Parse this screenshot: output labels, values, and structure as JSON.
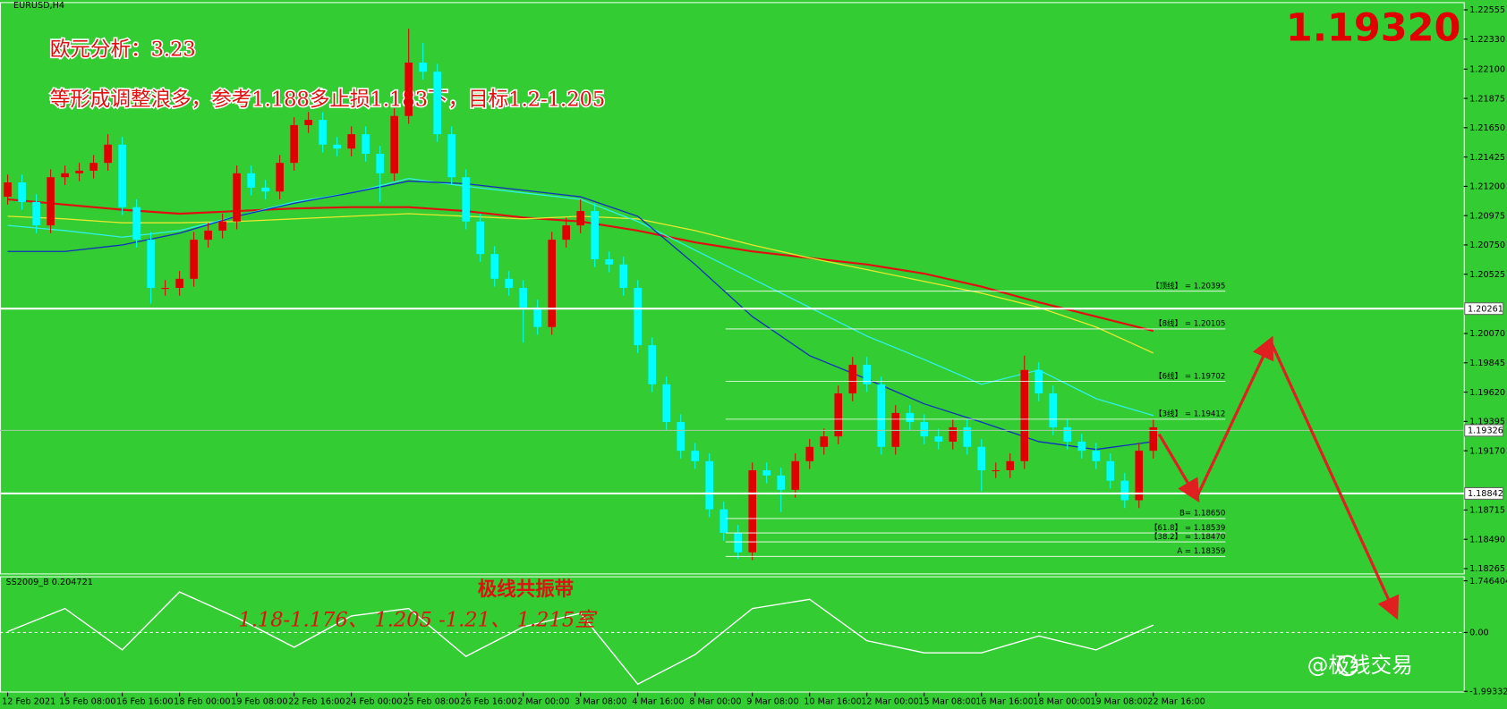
{
  "symbol": "EURUSD,H4",
  "price_display": "1.19320",
  "annotations": [
    "欧元分析：3.23",
    "等形成调整浪多，参考1.188多止损1.183下，目标1.2-1.205"
  ],
  "watermark": "@极线交易",
  "chart_data": [
    {
      "type": "candlestick",
      "categories": [
        "12 Feb 2021",
        null,
        null,
        null,
        "15 Feb 08:00",
        null,
        null,
        null,
        "16 Feb 16:00",
        null,
        null,
        null,
        "18 Feb 00:00",
        null,
        null,
        null,
        "19 Feb 08:00",
        null,
        null,
        null,
        "22 Feb 16:00",
        null,
        null,
        null,
        "24 Feb 00:00",
        null,
        null,
        null,
        "25 Feb 08:00",
        null,
        null,
        null,
        "26 Feb 16:00",
        null,
        null,
        null,
        "2 Mar 00:00",
        null,
        null,
        null,
        "3 Mar 08:00",
        null,
        null,
        null,
        "4 Mar 16:00",
        null,
        null,
        null,
        "8 Mar 00:00",
        null,
        null,
        null,
        "9 Mar 08:00",
        null,
        null,
        null,
        "10 Mar 16:00",
        null,
        null,
        null,
        "12 Mar 00:00",
        null,
        null,
        null,
        "15 Mar 08:00",
        null,
        null,
        null,
        "16 Mar 16:00",
        null,
        null,
        null,
        "18 Mar 00:00",
        null,
        null,
        null,
        "19 Mar 08:00",
        null,
        null,
        null,
        "22 Mar 16:00"
      ],
      "open": [
        1.2112,
        1.2123,
        1.2108,
        1.209,
        1.2127,
        1.213,
        1.2132,
        1.2138,
        1.2152,
        1.2104,
        1.2079,
        1.2042,
        1.2042,
        1.2049,
        1.2079,
        1.2086,
        1.2093,
        1.213,
        1.2119,
        1.2116,
        1.2138,
        1.2167,
        1.2171,
        1.2152,
        1.2149,
        1.216,
        1.2145,
        1.213,
        1.2174,
        1.2215,
        1.2208,
        1.216,
        1.2127,
        1.2093,
        1.2068,
        1.2049,
        1.2042,
        1.2027,
        1.2012,
        1.2079,
        1.209,
        1.2101,
        1.2064,
        1.206,
        1.2042,
        1.1998,
        1.1968,
        1.1939,
        1.1917,
        1.1909,
        1.1872,
        1.1854,
        1.1839,
        1.1902,
        1.1898,
        1.1887,
        1.1909,
        1.192,
        1.1928,
        1.1961,
        1.1983,
        1.1968,
        1.192,
        1.1946,
        1.1939,
        1.1928,
        1.1924,
        1.1935,
        1.192,
        1.1902,
        1.1902,
        1.1909,
        1.1979,
        1.1961,
        1.1935,
        1.1924,
        1.1917,
        1.1909,
        1.1894,
        1.1879,
        1.1917
      ],
      "high": [
        1.2129,
        1.2129,
        1.2114,
        1.2133,
        1.2136,
        1.2138,
        1.2144,
        1.216,
        1.2158,
        1.211,
        1.2085,
        1.2048,
        1.2055,
        1.2085,
        1.2092,
        1.2099,
        1.2136,
        1.2136,
        1.2125,
        1.2144,
        1.2173,
        1.2177,
        1.2177,
        1.2158,
        1.2166,
        1.2166,
        1.2151,
        1.218,
        1.2241,
        1.223,
        1.2214,
        1.2166,
        1.2133,
        1.2099,
        1.2074,
        1.2055,
        1.2048,
        1.2033,
        1.2085,
        1.2096,
        1.211,
        1.2107,
        1.207,
        1.2066,
        1.2048,
        1.2004,
        1.1974,
        1.1945,
        1.1923,
        1.1915,
        1.1878,
        1.186,
        1.1908,
        1.1908,
        1.1904,
        1.1915,
        1.1926,
        1.1934,
        1.1967,
        1.1989,
        1.1989,
        1.1974,
        1.1952,
        1.1952,
        1.1945,
        1.1934,
        1.1941,
        1.1941,
        1.1926,
        1.1908,
        1.1915,
        1.199,
        1.1985,
        1.1967,
        1.1941,
        1.193,
        1.1923,
        1.1915,
        1.19,
        1.1923,
        1.1941
      ],
      "low": [
        1.2106,
        1.2102,
        1.2084,
        1.2084,
        1.2121,
        1.2124,
        1.2126,
        1.2132,
        1.2098,
        1.2073,
        1.203,
        1.2036,
        1.2036,
        1.2043,
        1.2073,
        1.208,
        1.2087,
        1.2113,
        1.211,
        1.211,
        1.2132,
        1.2161,
        1.2146,
        1.2143,
        1.2143,
        1.2139,
        1.2108,
        1.2124,
        1.2168,
        1.2202,
        1.2154,
        1.2121,
        1.2087,
        1.2062,
        1.2043,
        1.2036,
        1.2,
        1.2006,
        1.2006,
        1.2073,
        1.2084,
        1.2058,
        1.2054,
        1.2036,
        1.1992,
        1.1962,
        1.1933,
        1.1911,
        1.1903,
        1.1866,
        1.1848,
        1.1834,
        1.1833,
        1.1892,
        1.187,
        1.1881,
        1.1903,
        1.1914,
        1.1922,
        1.1955,
        1.1962,
        1.1914,
        1.1914,
        1.1933,
        1.1922,
        1.1918,
        1.1918,
        1.1914,
        1.1886,
        1.1896,
        1.1896,
        1.1903,
        1.1955,
        1.1929,
        1.1918,
        1.1911,
        1.1903,
        1.1888,
        1.1873,
        1.1873,
        1.1911
      ],
      "close": [
        1.2123,
        1.2108,
        1.209,
        1.2127,
        1.213,
        1.2132,
        1.2138,
        1.2152,
        1.2104,
        1.2079,
        1.2042,
        1.2042,
        1.2049,
        1.2079,
        1.2086,
        1.2093,
        1.213,
        1.2119,
        1.2116,
        1.2138,
        1.2167,
        1.2171,
        1.2152,
        1.2149,
        1.216,
        1.2145,
        1.213,
        1.2174,
        1.2215,
        1.2208,
        1.216,
        1.2127,
        1.2093,
        1.2068,
        1.2049,
        1.2042,
        1.2027,
        1.2012,
        1.2079,
        1.209,
        1.2101,
        1.2064,
        1.206,
        1.2042,
        1.1998,
        1.1968,
        1.1939,
        1.1917,
        1.1909,
        1.1872,
        1.1854,
        1.1839,
        1.1902,
        1.1898,
        1.1887,
        1.1909,
        1.192,
        1.1928,
        1.1961,
        1.1983,
        1.1968,
        1.192,
        1.1946,
        1.1939,
        1.1928,
        1.1924,
        1.1935,
        1.192,
        1.1902,
        1.1902,
        1.1909,
        1.1979,
        1.1961,
        1.1935,
        1.1924,
        1.1917,
        1.1909,
        1.1894,
        1.1879,
        1.1917,
        1.1935
      ],
      "up_color": "#e00000",
      "down_color": "#00ffff",
      "ylim": [
        1.18228,
        1.22607
      ],
      "yticks": [
        1.22555,
        {
          "value": 1.2233,
          "label": "1.22330"
        },
        {
          "value": 1.221,
          "label": "1.22100"
        },
        1.21875,
        {
          "value": 1.2165,
          "label": "1.21650"
        },
        1.21425,
        {
          "value": 1.212,
          "label": "1.21200"
        },
        1.20975,
        {
          "value": 1.2075,
          "label": "1.20750"
        },
        1.20525,
        {
          "value": 1.2007,
          "label": "1.20070"
        },
        1.19845,
        {
          "value": 1.1962,
          "label": "1.19620"
        },
        1.19395,
        {
          "value": 1.1917,
          "label": "1.19170"
        },
        1.18715,
        {
          "value": 1.1849,
          "label": "1.18490"
        },
        1.18265
      ],
      "levels": [
        1.20261,
        1.18842
      ],
      "current_price": 1.19326,
      "moving_averages": {
        "x": [
          0,
          4,
          8,
          12,
          16,
          20,
          24,
          28,
          32,
          36,
          40,
          44,
          48,
          52,
          56,
          60,
          64,
          68,
          72,
          76,
          80
        ],
        "series": [
          {
            "color": "#e01010",
            "values": [
              1.211,
              1.2106,
              1.2102,
              1.2099,
              1.2101,
              1.2103,
              1.2104,
              1.2104,
              1.2101,
              1.2096,
              1.2093,
              1.2086,
              1.2077,
              1.207,
              1.2065,
              1.206,
              1.2053,
              1.2043,
              1.2031,
              1.202,
              1.2009
            ]
          },
          {
            "color": "#e8e830",
            "values": [
              1.2097,
              1.2095,
              1.2092,
              1.2092,
              1.2093,
              1.2095,
              1.2097,
              1.2099,
              1.2097,
              1.2095,
              1.2097,
              1.2095,
              1.2086,
              1.2075,
              1.2065,
              1.2056,
              1.2047,
              1.2038,
              1.2027,
              1.2012,
              1.1992
            ]
          },
          {
            "color": "#30f0e8",
            "values": [
              1.209,
              1.2086,
              1.2081,
              1.2086,
              1.2097,
              1.2108,
              1.2115,
              1.2126,
              1.212,
              1.2115,
              1.211,
              1.2093,
              1.2071,
              1.2049,
              1.2027,
              1.2005,
              1.1987,
              1.1968,
              1.1979,
              1.1957,
              1.1944
            ]
          },
          {
            "color": "#1030c0",
            "values": [
              1.207,
              1.207,
              1.2075,
              1.2084,
              1.2097,
              1.2107,
              1.2115,
              1.2124,
              1.2122,
              1.2117,
              1.2112,
              1.2097,
              1.206,
              1.202,
              1.199,
              1.1972,
              1.1953,
              1.1939,
              1.1924,
              1.1918,
              1.1924
            ]
          }
        ]
      },
      "fib_levels": [
        {
          "label": "【顶线】 = 1.20395",
          "value": 1.20395
        },
        {
          "label": "【8线】 = 1.20105",
          "value": 1.20105
        },
        {
          "label": "【6线】 = 1.19702",
          "value": 1.19702
        },
        {
          "label": "【3线】 = 1.19412",
          "value": 1.19412
        },
        {
          "label": "B= 1.18650",
          "value": 1.1865
        },
        {
          "label": "【61.8】 = 1.18539",
          "value": 1.18539
        },
        {
          "label": "【38.2】 = 1.18470",
          "value": 1.1847
        },
        {
          "label": "A = 1.18359",
          "value": 1.18359
        }
      ]
    },
    {
      "type": "line",
      "label": "SS2009_B 0.204721",
      "x": [
        0,
        4,
        8,
        12,
        16,
        20,
        24,
        28,
        32,
        36,
        40,
        44,
        48,
        52,
        56,
        60,
        64,
        68,
        72,
        76,
        80
      ],
      "values": [
        0.03,
        0.81,
        -0.59,
        1.37,
        0.5,
        -0.5,
        0.56,
        0.81,
        -0.81,
        0.19,
        0.65,
        -1.75,
        -0.75,
        0.81,
        1.12,
        -0.28,
        -0.69,
        -0.69,
        -0.12,
        -0.59,
        0.25
      ],
      "color": "#ffffff",
      "ylim": [
        -2.0,
        1.9
      ],
      "yticks": [
        -1.993321,
        {
          "value": 0,
          "label": "0.00"
        },
        1.746404
      ],
      "annotations": [
        "极线共振带",
        "1.18-1.176、  1.205 -1.21、 1.215室"
      ]
    }
  ]
}
